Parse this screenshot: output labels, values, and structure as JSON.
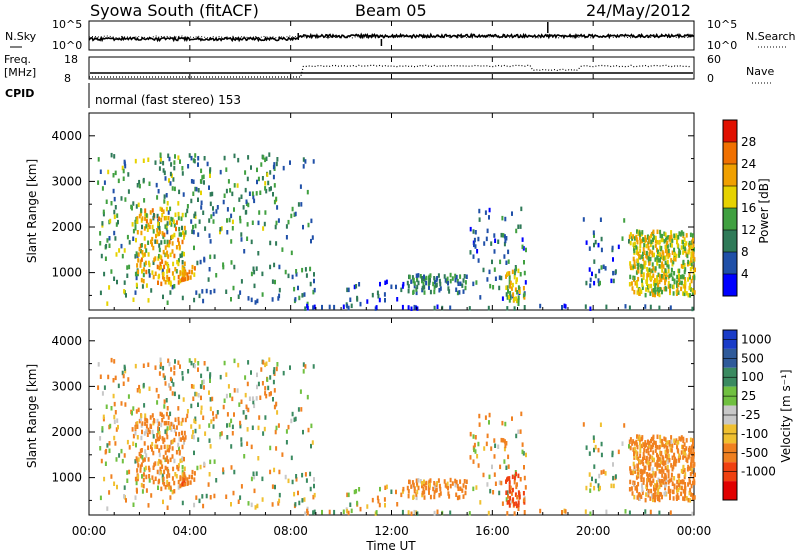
{
  "header": {
    "station": "Syowa South (fitACF)",
    "beam": "Beam 05",
    "date": "24/May/2012"
  },
  "nsky": {
    "label": "N.Sky",
    "right_label": "N.Search",
    "left_ticks": [
      "10^5",
      "10^0"
    ],
    "right_ticks": [
      "10^5",
      "10^0"
    ]
  },
  "freq": {
    "label_line1": "Freq.",
    "label_line2": "[MHz]",
    "right_label": "Nave",
    "left_ticks": [
      "18",
      "8"
    ],
    "right_ticks": [
      "60",
      "0"
    ]
  },
  "cpid": {
    "label": "CPID",
    "text": "normal (fast stereo) 153"
  },
  "x_axis": {
    "label": "Time UT",
    "ticks": [
      "00:00",
      "04:00",
      "08:00",
      "12:00",
      "16:00",
      "20:00",
      "00:00"
    ],
    "range_hours": [
      0,
      24
    ]
  },
  "power_panel": {
    "ylabel": "Slant Range [km]",
    "yticks": [
      "1000",
      "2000",
      "3000",
      "4000"
    ],
    "colorbar_label": "Power [dB]",
    "colorbar_ticks": [
      "4",
      "8",
      "12",
      "16",
      "20",
      "24",
      "28"
    ],
    "colors": [
      "#0000ff",
      "#2050a8",
      "#2f7a58",
      "#40a040",
      "#e6d200",
      "#f0a000",
      "#f07000",
      "#e01000"
    ]
  },
  "velocity_panel": {
    "ylabel": "Slant Range [km]",
    "yticks": [
      "1000",
      "2000",
      "3000",
      "4000"
    ],
    "colorbar_label": "Velocity [m s⁻¹]",
    "colorbar_ticks": [
      "1000",
      "500",
      "100",
      "25",
      "-25",
      "-100",
      "-500",
      "-1000"
    ],
    "colors": [
      "#1a3cc8",
      "#2f5a9a",
      "#3a8a60",
      "#70c040",
      "#c8c8c8",
      "#f0c030",
      "#f08020",
      "#f04010",
      "#e00000"
    ]
  },
  "chart_data": {
    "type": "heatmap",
    "title": "Syowa South (fitACF)  Beam 05  24/May/2012",
    "xlabel": "Time UT",
    "ylabel": "Slant Range [km]",
    "xlim_hours": [
      0,
      24
    ],
    "ylim_km": [
      180,
      4500
    ],
    "regions": [
      {
        "t0": 0.3,
        "t1": 3.8,
        "r0": 300,
        "r1": 3600,
        "density": 0.05,
        "power_mean": 12,
        "vel_mean": -100
      },
      {
        "t0": 1.8,
        "t1": 3.8,
        "r0": 700,
        "r1": 2400,
        "density": 0.16,
        "power_mean": 20,
        "vel_mean": -200
      },
      {
        "t0": 3.5,
        "t1": 4.2,
        "r0": 850,
        "r1": 1200,
        "density": 0.25,
        "power_mean": 22,
        "vel_mean": -300
      },
      {
        "t0": 2.5,
        "t1": 7.5,
        "r0": 1800,
        "r1": 3600,
        "density": 0.04,
        "power_mean": 12,
        "vel_mean": 0
      },
      {
        "t0": 4.0,
        "t1": 9.0,
        "r0": 300,
        "r1": 3600,
        "density": 0.025,
        "power_mean": 10,
        "vel_mean": 0
      },
      {
        "t0": 10.0,
        "t1": 12.5,
        "r0": 300,
        "r1": 800,
        "density": 0.07,
        "power_mean": 6,
        "vel_mean": -100
      },
      {
        "t0": 12.6,
        "t1": 15.0,
        "r0": 550,
        "r1": 950,
        "density": 0.3,
        "power_mean": 10,
        "vel_mean": -250
      },
      {
        "t0": 15.0,
        "t1": 17.3,
        "r0": 400,
        "r1": 2400,
        "density": 0.06,
        "power_mean": 8,
        "vel_mean": -100
      },
      {
        "t0": 16.5,
        "t1": 17.3,
        "r0": 300,
        "r1": 1100,
        "density": 0.25,
        "power_mean": 18,
        "vel_mean": -600
      },
      {
        "t0": 19.5,
        "t1": 21.4,
        "r0": 700,
        "r1": 2200,
        "density": 0.05,
        "power_mean": 8,
        "vel_mean": 0
      },
      {
        "t0": 21.4,
        "t1": 24.0,
        "r0": 500,
        "r1": 1900,
        "density": 0.4,
        "power_mean": 18,
        "vel_mean": -250
      },
      {
        "t0": 8.5,
        "t1": 24.0,
        "r0": 200,
        "r1": 280,
        "density": 0.12,
        "power_mean": 6,
        "vel_mean": 0
      }
    ]
  }
}
